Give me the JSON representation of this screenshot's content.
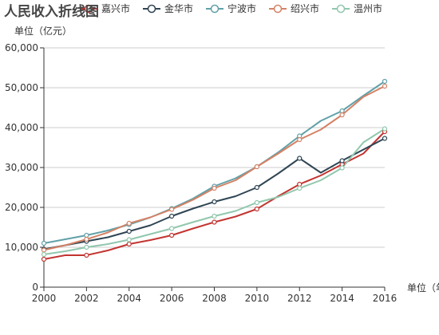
{
  "chart_data": {
    "type": "line",
    "title": "人民收入折线图",
    "ylabel": "单位（亿元）",
    "xlabel": "单位（年）",
    "x": [
      2000,
      2001,
      2002,
      2003,
      2004,
      2005,
      2006,
      2007,
      2008,
      2009,
      2010,
      2011,
      2012,
      2013,
      2014,
      2015,
      2016
    ],
    "xticks": [
      "2000",
      "2002",
      "2004",
      "2006",
      "2008",
      "2010",
      "2012",
      "2014",
      "2016"
    ],
    "yticks": [
      "0",
      "10,000",
      "20,000",
      "30,000",
      "40,000",
      "50,000",
      "60,000"
    ],
    "ylim": [
      0,
      60000
    ],
    "xlim": [
      2000,
      2016
    ],
    "grid": true,
    "legend_position": "top",
    "series": [
      {
        "name": "嘉兴市",
        "color": "#c23531",
        "values": [
          7000,
          8000,
          8000,
          9200,
          10800,
          11800,
          13000,
          14700,
          16300,
          17700,
          19600,
          22800,
          25800,
          28000,
          30800,
          33500,
          39000
        ]
      },
      {
        "name": "金华市",
        "color": "#2f4554",
        "values": [
          9500,
          10500,
          11500,
          12500,
          14000,
          15500,
          17800,
          19700,
          21400,
          22800,
          25000,
          28500,
          32300,
          28700,
          31700,
          34500,
          37300
        ]
      },
      {
        "name": "宁波市",
        "color": "#61a0a8",
        "values": [
          11000,
          12000,
          13000,
          14200,
          15700,
          17500,
          19700,
          22200,
          25300,
          27300,
          30200,
          33800,
          37900,
          41700,
          44200,
          48000,
          51600
        ]
      },
      {
        "name": "绍兴市",
        "color": "#d48265",
        "values": [
          9300,
          10500,
          12000,
          13700,
          16000,
          17500,
          19500,
          21900,
          24800,
          26800,
          30200,
          33500,
          37000,
          39500,
          43200,
          47700,
          50400
        ]
      },
      {
        "name": "温州市",
        "color": "#91c7ae",
        "values": [
          8200,
          9000,
          10000,
          10800,
          11900,
          13300,
          14700,
          16300,
          17800,
          19100,
          21200,
          22600,
          24800,
          26800,
          29900,
          36300,
          39700
        ]
      }
    ]
  }
}
